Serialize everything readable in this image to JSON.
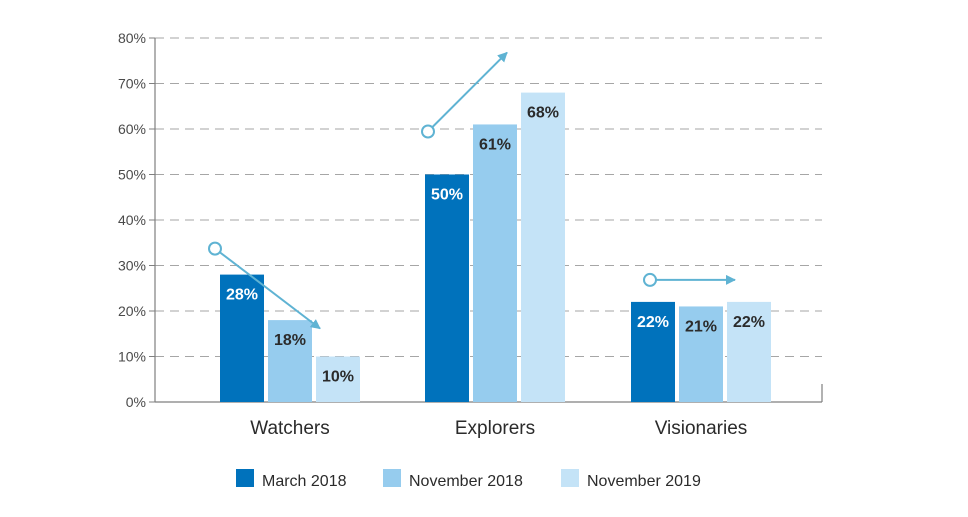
{
  "chart_data": {
    "type": "bar",
    "categories": [
      "Watchers",
      "Explorers",
      "Visionaries"
    ],
    "series": [
      {
        "name": "March 2018",
        "color": "#0072bc",
        "values": [
          28,
          50,
          22
        ]
      },
      {
        "name": "November 2018",
        "color": "#96ccee",
        "values": [
          18,
          61,
          21
        ]
      },
      {
        "name": "November 2019",
        "color": "#c4e3f7",
        "values": [
          10,
          68,
          22
        ]
      }
    ],
    "data_labels": [
      [
        "28%",
        "50%",
        "22%"
      ],
      [
        "18%",
        "61%",
        "21%"
      ],
      [
        "10%",
        "68%",
        "22%"
      ]
    ],
    "ylim": [
      0,
      80
    ],
    "yticks": [
      0,
      10,
      20,
      30,
      40,
      50,
      60,
      70,
      80
    ],
    "ytick_labels": [
      "0%",
      "10%",
      "20%",
      "30%",
      "40%",
      "50%",
      "60%",
      "70%",
      "80%"
    ],
    "grid": "dashed horizontal",
    "legend_position": "bottom",
    "trend_arrows": [
      "down",
      "up",
      "flat"
    ],
    "arrow_color": "#5fb3d3"
  }
}
